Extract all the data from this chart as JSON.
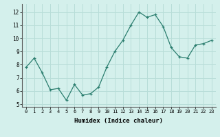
{
  "x": [
    0,
    1,
    2,
    3,
    4,
    5,
    6,
    7,
    8,
    9,
    10,
    11,
    12,
    13,
    14,
    15,
    16,
    17,
    18,
    19,
    20,
    21,
    22,
    23
  ],
  "y": [
    7.8,
    8.5,
    7.4,
    6.1,
    6.2,
    5.3,
    6.5,
    5.7,
    5.8,
    6.3,
    7.8,
    9.0,
    9.85,
    11.0,
    12.0,
    11.6,
    11.8,
    10.9,
    9.3,
    8.6,
    8.5,
    9.5,
    9.6,
    9.85
  ],
  "xlabel": "Humidex (Indice chaleur)",
  "ylim": [
    4.8,
    12.6
  ],
  "xlim": [
    -0.5,
    23.5
  ],
  "yticks": [
    5,
    6,
    7,
    8,
    9,
    10,
    11,
    12
  ],
  "xticks": [
    0,
    1,
    2,
    3,
    4,
    5,
    6,
    7,
    8,
    9,
    10,
    11,
    12,
    13,
    14,
    15,
    16,
    17,
    18,
    19,
    20,
    21,
    22,
    23
  ],
  "line_color": "#2a7d6e",
  "marker": "+",
  "marker_size": 3,
  "bg_color": "#d4f0ec",
  "grid_color": "#b8ddd8",
  "font_family": "monospace",
  "tick_fontsize": 5,
  "xlabel_fontsize": 6.5
}
